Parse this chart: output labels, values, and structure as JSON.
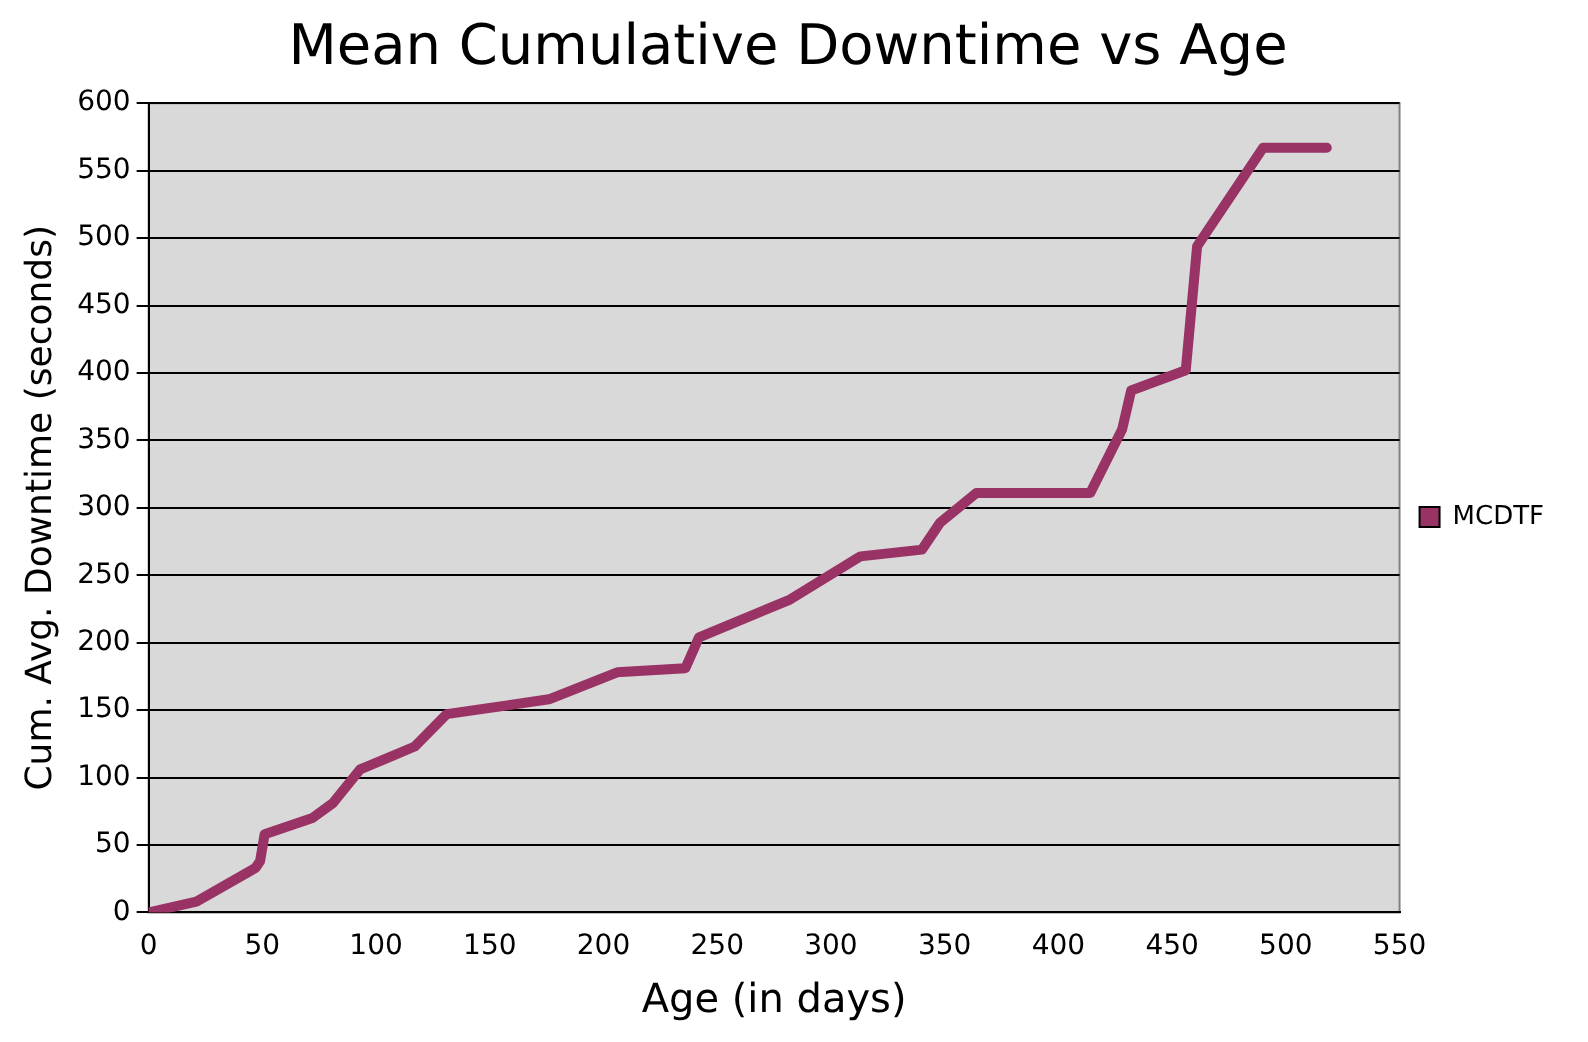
{
  "chart_data": {
    "type": "line",
    "title": "Mean Cumulative Downtime vs Age",
    "xlabel": "Age (in days)",
    "ylabel": "Cum. Avg. Downtime (seconds)",
    "x": [
      0,
      21,
      47,
      49,
      51,
      72,
      81,
      93,
      117,
      131,
      176,
      206,
      236,
      242,
      282,
      313,
      340,
      348,
      364,
      414,
      428,
      432,
      456,
      461,
      490,
      518
    ],
    "series": [
      {
        "name": "MCDTF",
        "color": "#993366",
        "values": [
          0,
          8,
          33,
          38,
          58,
          70,
          81,
          106,
          123,
          147,
          158,
          178,
          181,
          204,
          232,
          264,
          269,
          289,
          311,
          311,
          358,
          387,
          402,
          494,
          567,
          567
        ]
      }
    ],
    "xlim": [
      0,
      550
    ],
    "xticks": [
      0,
      50,
      100,
      150,
      200,
      250,
      300,
      350,
      400,
      450,
      500,
      550
    ],
    "ylim": [
      0,
      600
    ],
    "yticks": [
      0,
      50,
      100,
      150,
      200,
      250,
      300,
      350,
      400,
      450,
      500,
      550,
      600
    ],
    "grid": "y",
    "legend": "right",
    "marker": "none",
    "line_style": "solid"
  }
}
